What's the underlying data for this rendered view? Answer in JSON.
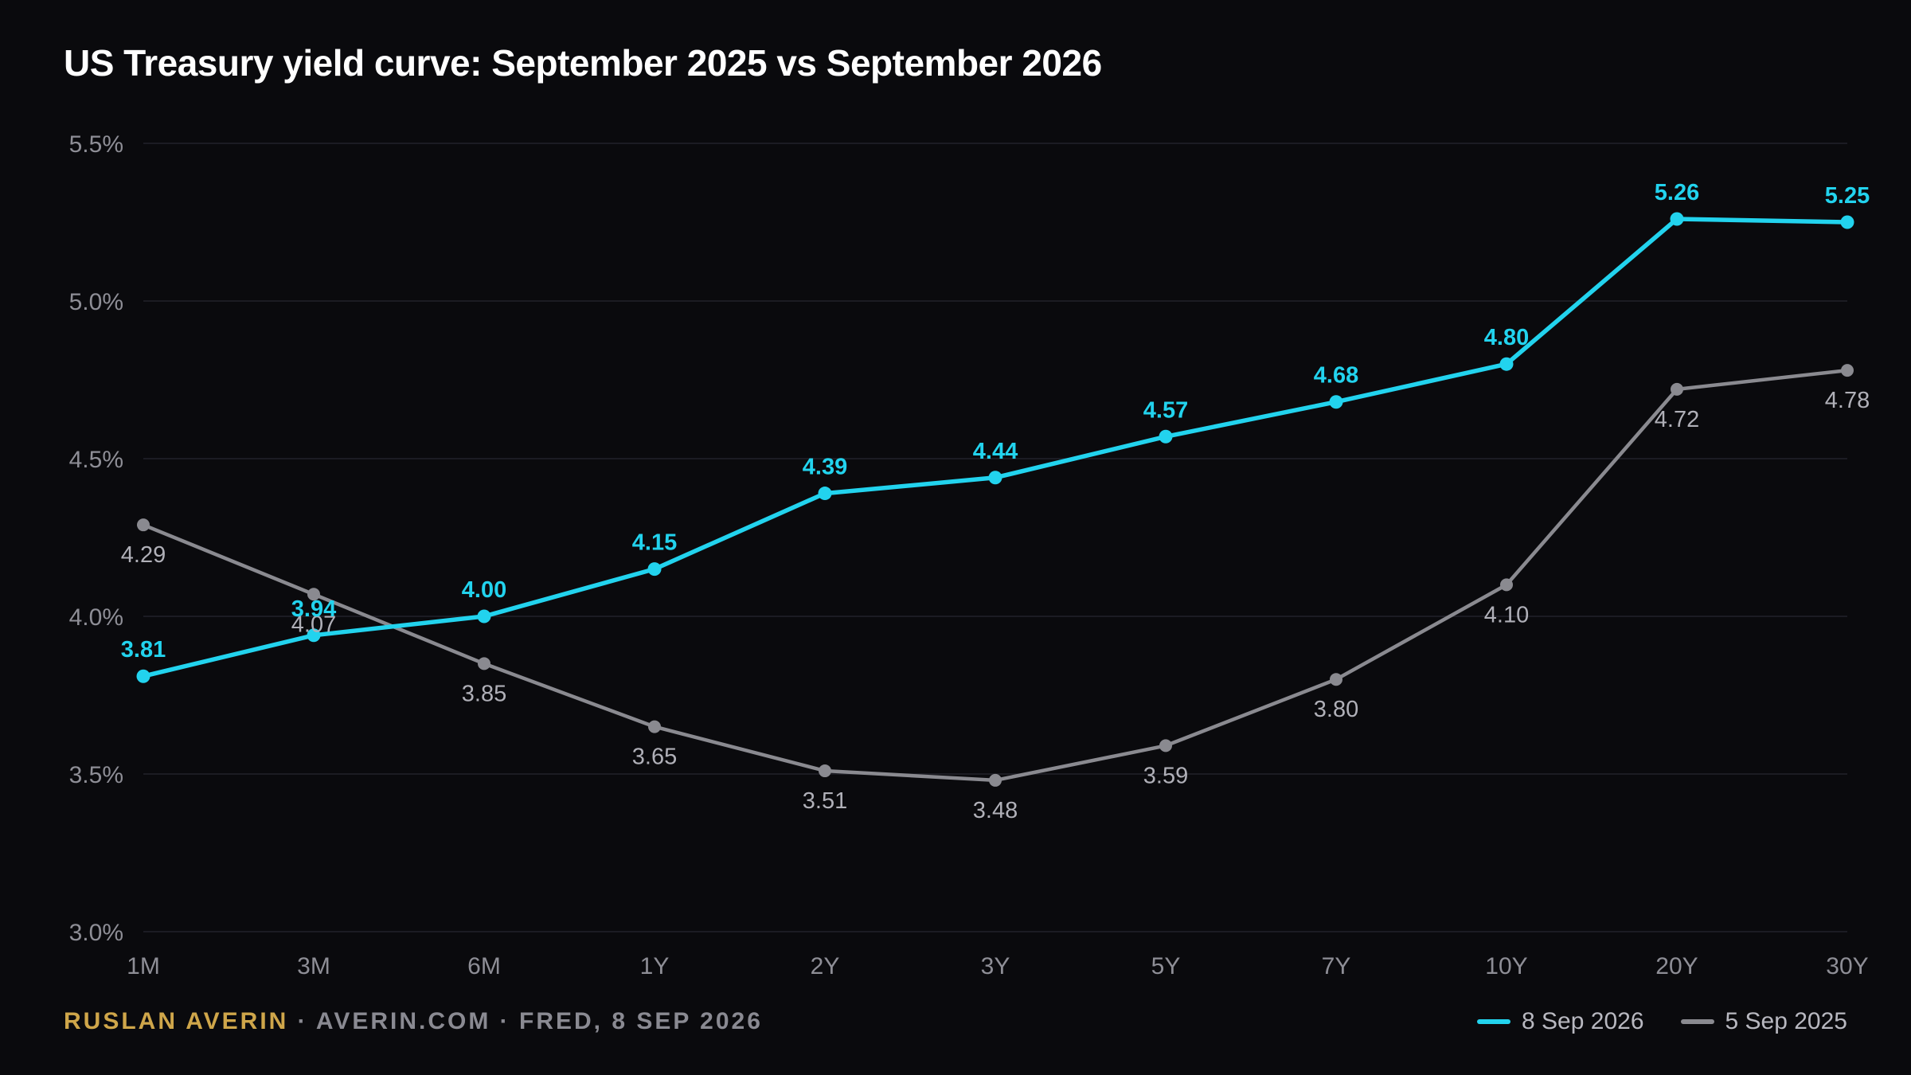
{
  "title": "US Treasury yield curve: September 2025 vs September 2026",
  "footer": {
    "name": "RUSLAN AVERIN",
    "rest": " · AVERIN.COM · FRED, 8 SEP 2026"
  },
  "colors": {
    "series_2026": "#22d3ee",
    "series_2025": "#8a8a90",
    "label_2025": "#b0b0b8",
    "grid": "#23232b",
    "axis_text": "#8e8e96",
    "credit_name": "#cfa64a"
  },
  "chart_data": {
    "type": "line",
    "title": "US Treasury yield curve: September 2025 vs September 2026",
    "xlabel": "",
    "ylabel": "",
    "categories": [
      "1M",
      "3M",
      "6M",
      "1Y",
      "2Y",
      "3Y",
      "5Y",
      "7Y",
      "10Y",
      "20Y",
      "30Y"
    ],
    "ylim": [
      3.0,
      5.5
    ],
    "yticks": [
      3.0,
      3.5,
      4.0,
      4.5,
      5.0,
      5.5
    ],
    "ytick_labels": [
      "3.0%",
      "3.5%",
      "4.0%",
      "4.5%",
      "5.0%",
      "5.5%"
    ],
    "grid": true,
    "legend_position": "bottom-right",
    "series": [
      {
        "name": "8 Sep 2026",
        "values": [
          3.81,
          3.94,
          4.0,
          4.15,
          4.39,
          4.44,
          4.57,
          4.68,
          4.8,
          5.26,
          5.25
        ],
        "labels": [
          "3.81",
          "3.94",
          "4.00",
          "4.15",
          "4.39",
          "4.44",
          "4.57",
          "4.68",
          "4.80",
          "5.26",
          "5.25"
        ]
      },
      {
        "name": "5 Sep 2025",
        "values": [
          4.29,
          4.07,
          3.85,
          3.65,
          3.51,
          3.48,
          3.59,
          3.8,
          4.1,
          4.72,
          4.78
        ],
        "labels": [
          "4.29",
          "4.07",
          "3.85",
          "3.65",
          "3.51",
          "3.48",
          "3.59",
          "3.80",
          "4.10",
          "4.72",
          "4.78"
        ]
      }
    ]
  }
}
